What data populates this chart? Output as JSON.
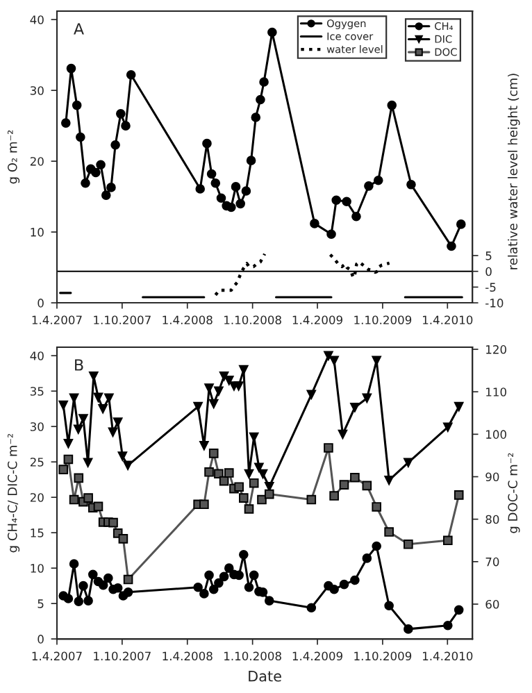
{
  "chart_data": [
    {
      "type": "line",
      "title": "A",
      "ylabel": "g O₂ m⁻²",
      "y2label": "relative water level height (cm)",
      "xlim": [
        "2007-04-01",
        "2010-06-10"
      ],
      "xticks": [
        {
          "value": "2007-04-01",
          "label": "1.4.2007"
        },
        {
          "value": "2007-10-01",
          "label": "1.10.2007"
        },
        {
          "value": "2008-04-01",
          "label": "1.4.2008"
        },
        {
          "value": "2008-10-01",
          "label": "1.10.2008"
        },
        {
          "value": "2009-04-01",
          "label": "1.4.2009"
        },
        {
          "value": "2009-10-01",
          "label": "1.10.2009"
        },
        {
          "value": "2010-04-01",
          "label": "1.4.2010"
        }
      ],
      "ylim": [
        0,
        41.2
      ],
      "yticks": [
        0,
        10,
        20,
        30,
        40
      ],
      "y2lim": [
        -10,
        82.6
      ],
      "y2ticks": [
        -10,
        -5,
        0,
        5
      ],
      "legend": "top right",
      "ref_lines": [
        {
          "axis": "y2",
          "value": 0,
          "color": "#000000",
          "line_style": "solid"
        }
      ],
      "series": [
        {
          "name": "Ogygen",
          "color": "#000000",
          "marker": "circle",
          "line_style": "solid",
          "x": [
            "2007-04-26",
            "2007-05-11",
            "2007-05-27",
            "2007-06-06",
            "2007-06-20",
            "2007-07-05",
            "2007-07-19",
            "2007-08-02",
            "2007-08-17",
            "2007-08-31",
            "2007-09-12",
            "2007-09-27",
            "2007-10-11",
            "2007-10-26",
            "2008-05-07",
            "2008-05-26",
            "2008-06-08",
            "2008-06-19",
            "2008-07-05",
            "2008-07-20",
            "2008-08-02",
            "2008-08-15",
            "2008-08-28",
            "2008-09-13",
            "2008-09-27",
            "2008-10-10",
            "2008-10-23",
            "2008-11-02",
            "2008-11-25",
            "2009-03-24",
            "2009-05-10",
            "2009-05-24",
            "2009-06-22",
            "2009-07-19",
            "2009-08-23",
            "2009-09-19",
            "2009-10-27",
            "2009-12-20",
            "2010-04-12",
            "2010-05-09"
          ],
          "values": [
            25.4,
            33.1,
            27.9,
            23.4,
            16.9,
            18.9,
            18.4,
            19.5,
            15.2,
            16.3,
            22.3,
            26.7,
            25,
            32.2,
            16.1,
            22.5,
            18.2,
            16.9,
            14.8,
            13.7,
            13.5,
            16.4,
            14,
            15.8,
            20.1,
            26.2,
            28.7,
            31.2,
            38.2,
            11.2,
            9.7,
            14.5,
            14.3,
            12.2,
            16.5,
            17.3,
            27.9,
            16.7,
            8,
            11.1
          ]
        },
        {
          "name": "Ice cover",
          "color": "#000000",
          "marker": "none",
          "line_style": "solid",
          "x": [
            "2007-04-10",
            "2007-05-10",
            "2007-06-01",
            "2007-11-28",
            "2008-05-18",
            "2008-06-01",
            "2008-12-06",
            "2009-05-10",
            "2009-06-01",
            "2009-12-03",
            "2010-05-12"
          ],
          "values": [
            1.4,
            1.4,
            null,
            0.8,
            0.8,
            null,
            0.8,
            0.8,
            null,
            0.8,
            0.8
          ]
        },
        {
          "name": "water level",
          "color": "#000000",
          "marker": "none",
          "line_style": "dotted",
          "axis": "y2",
          "x": [
            "2008-06-19",
            "2008-06-30",
            "2008-07-13",
            "2008-07-24",
            "2008-08-02",
            "2008-08-11",
            "2008-08-19",
            "2008-08-26",
            "2008-09-01",
            "2008-09-06",
            "2008-09-12",
            "2008-09-15",
            "2008-09-21",
            "2008-10-04",
            "2008-10-14",
            "2008-10-23",
            "2008-10-28",
            "2008-11-04",
            "2009-01-01",
            "2009-05-07",
            "2009-05-15",
            "2009-05-25",
            "2009-06-01",
            "2009-06-09",
            "2009-06-18",
            "2009-06-23",
            "2009-07-01",
            "2009-07-06",
            "2009-07-11",
            "2009-07-15",
            "2009-07-20",
            "2009-07-27",
            "2009-08-09",
            "2009-08-22",
            "2009-09-02",
            "2009-09-10",
            "2009-09-17",
            "2009-09-22",
            "2009-09-29",
            "2009-10-10",
            "2009-10-20"
          ],
          "values": [
            -7.5,
            -6,
            -6,
            -6,
            -6,
            -4.5,
            -3.5,
            -1.5,
            0,
            1,
            2,
            2.5,
            1.5,
            1.5,
            2.5,
            3,
            4,
            5.5,
            null,
            5.3,
            4.4,
            3,
            2,
            1.5,
            2.3,
            1.2,
            0.6,
            -0.6,
            -2,
            -1,
            2.3,
            3,
            1.8,
            0.6,
            0.3,
            -0.3,
            0,
            1.5,
            2,
            2.3,
            2.6
          ]
        }
      ]
    },
    {
      "type": "line",
      "title": "B",
      "xlabel": "Date",
      "ylabel": "g CH₄-C/ DIC-C m⁻²",
      "y2label": "g DOC-C m⁻²",
      "xlim": [
        "2007-04-01",
        "2010-06-10"
      ],
      "xticks": [
        {
          "value": "2007-04-01",
          "label": "1.4.2007"
        },
        {
          "value": "2007-10-01",
          "label": "1.10.2007"
        },
        {
          "value": "2008-04-01",
          "label": "1.4.2008"
        },
        {
          "value": "2008-10-01",
          "label": "1.10.2008"
        },
        {
          "value": "2009-04-01",
          "label": "1.4.2009"
        },
        {
          "value": "2009-10-01",
          "label": "1.10.2009"
        },
        {
          "value": "2010-04-01",
          "label": "1.4.2010"
        }
      ],
      "ylim": [
        0,
        41.2
      ],
      "yticks": [
        0,
        5,
        10,
        15,
        20,
        25,
        30,
        35,
        40
      ],
      "y2lim": [
        51.8,
        120.5
      ],
      "y2ticks": [
        60,
        70,
        80,
        90,
        100,
        110,
        120
      ],
      "legend": "top right",
      "series": [
        {
          "name": "CH₄",
          "color": "#000000",
          "marker": "circle",
          "line_style": "solid",
          "x": [
            "2007-04-19",
            "2007-05-03",
            "2007-05-19",
            "2007-06-01",
            "2007-06-14",
            "2007-06-28",
            "2007-07-11",
            "2007-07-26",
            "2007-08-09",
            "2007-08-23",
            "2007-09-06",
            "2007-09-19",
            "2007-10-04",
            "2007-10-18",
            "2008-05-01",
            "2008-05-18",
            "2008-06-01",
            "2008-06-14",
            "2008-06-28",
            "2008-07-13",
            "2008-07-27",
            "2008-08-10",
            "2008-08-24",
            "2008-09-06",
            "2008-09-21",
            "2008-10-05",
            "2008-10-19",
            "2008-10-30",
            "2008-11-17",
            "2009-03-15",
            "2009-05-02",
            "2009-05-18",
            "2009-06-15",
            "2009-07-15",
            "2009-08-18",
            "2009-09-14",
            "2009-10-19",
            "2009-12-12",
            "2010-04-02",
            "2010-05-03"
          ],
          "values": [
            6.1,
            5.7,
            10.6,
            5.3,
            7.5,
            5.4,
            9.1,
            8.1,
            7.6,
            8.6,
            7,
            7.2,
            6.1,
            6.6,
            7.3,
            6.4,
            9,
            7,
            7.9,
            8.8,
            10,
            9.1,
            9,
            11.9,
            7.3,
            9,
            6.7,
            6.6,
            5.4,
            4.4,
            7.5,
            7,
            7.7,
            8.3,
            11.4,
            13.1,
            4.7,
            1.4,
            1.9,
            4.1
          ]
        },
        {
          "name": "DIC",
          "color": "#000000",
          "marker": "triangle",
          "line_style": "solid",
          "x": [
            "2007-04-19",
            "2007-05-03",
            "2007-05-19",
            "2007-05-31",
            "2007-06-14",
            "2007-06-27",
            "2007-07-13",
            "2007-07-26",
            "2007-08-08",
            "2007-08-25",
            "2007-09-05",
            "2007-09-19",
            "2007-10-02",
            "2007-10-17",
            "2008-05-01",
            "2008-05-18",
            "2008-06-01",
            "2008-06-14",
            "2008-06-28",
            "2008-07-13",
            "2008-07-27",
            "2008-08-10",
            "2008-08-23",
            "2008-09-06",
            "2008-09-21",
            "2008-10-05",
            "2008-10-19",
            "2008-10-30",
            "2008-11-17",
            "2009-03-15",
            "2009-05-02",
            "2009-05-18",
            "2009-06-11",
            "2009-07-15",
            "2009-08-18",
            "2009-09-14",
            "2009-10-19",
            "2009-12-12",
            "2010-04-02",
            "2010-05-03"
          ],
          "values": [
            33,
            27.6,
            34,
            29.6,
            31.1,
            24.9,
            37.1,
            34.1,
            32.5,
            34,
            29.2,
            30.6,
            25.8,
            24.5,
            32.8,
            27.3,
            35.4,
            33.2,
            35,
            37.1,
            36.5,
            35.7,
            35.7,
            38,
            23.3,
            28.5,
            24.2,
            23.3,
            21.5,
            34.5,
            40,
            39.3,
            28.9,
            32.7,
            34,
            39.3,
            22.4,
            24.9,
            29.9,
            32.8
          ]
        },
        {
          "name": "DOC",
          "color": "#555555",
          "marker": "square",
          "line_style": "solid",
          "axis": "y2",
          "x": [
            "2007-04-19",
            "2007-05-03",
            "2007-05-19",
            "2007-06-01",
            "2007-06-14",
            "2007-06-28",
            "2007-07-11",
            "2007-07-26",
            "2007-08-09",
            "2007-08-23",
            "2007-09-06",
            "2007-09-19",
            "2007-10-04",
            "2007-10-18",
            "2008-05-01",
            "2008-05-18",
            "2008-06-01",
            "2008-06-14",
            "2008-06-28",
            "2008-07-13",
            "2008-07-27",
            "2008-08-10",
            "2008-08-24",
            "2008-09-06",
            "2008-09-21",
            "2008-10-05",
            "2008-10-16",
            "2008-10-27",
            "2008-11-17",
            "2009-03-15",
            "2009-05-02",
            "2009-05-18",
            "2009-06-15",
            "2009-07-15",
            "2009-08-18",
            "2009-09-14",
            "2009-10-19",
            "2009-12-12",
            "2010-04-02",
            "2010-05-03"
          ],
          "values": [
            91.7,
            94.1,
            84.6,
            89.7,
            84.1,
            85,
            82.7,
            83,
            79.3,
            79.3,
            79.2,
            76.7,
            75.4,
            65.8,
            83.5,
            83.5,
            91.1,
            95.5,
            90.7,
            89,
            90.9,
            87.2,
            87.6,
            85,
            82.4,
            88.5,
            null,
            84.6,
            85.9,
            84.6,
            96.8,
            85.5,
            88.1,
            89.8,
            87.9,
            82.9,
            77,
            74.1,
            75,
            85.7
          ]
        }
      ]
    }
  ]
}
